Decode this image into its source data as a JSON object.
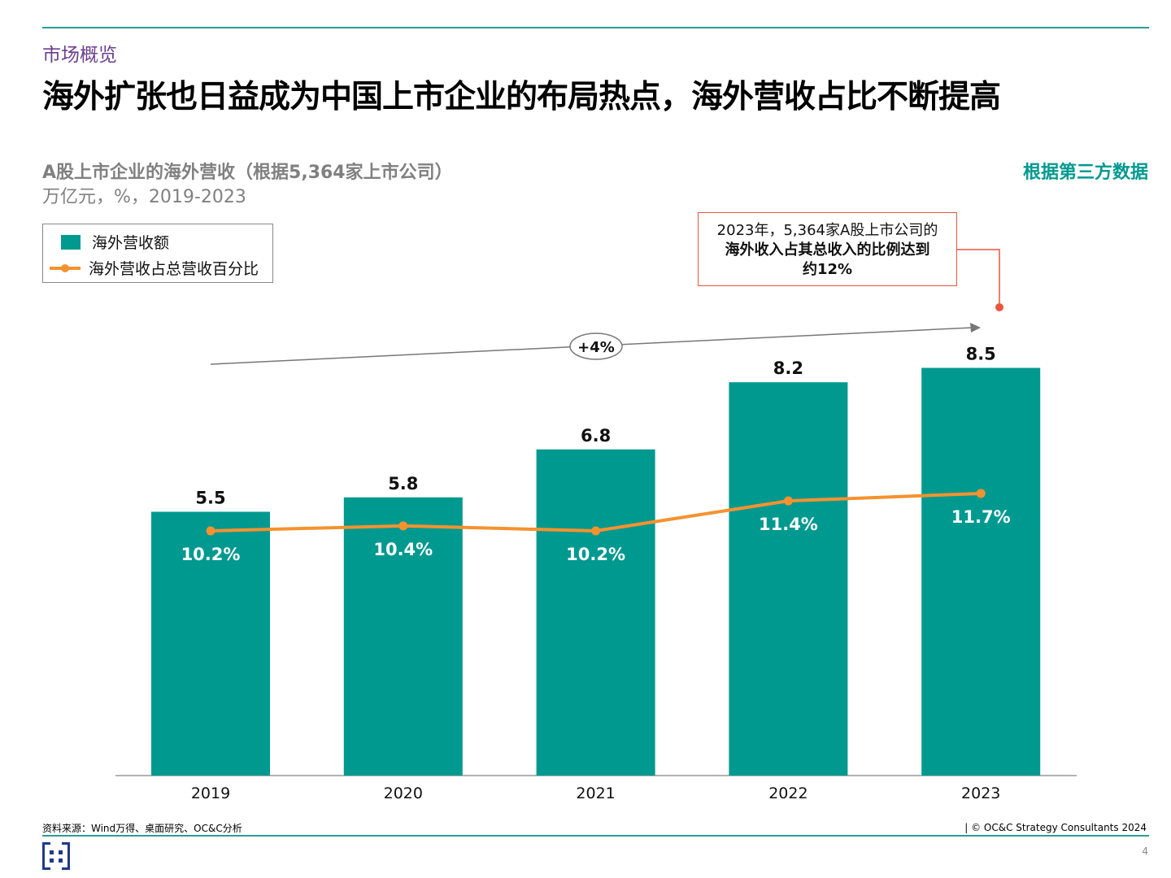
{
  "header": {
    "section": "市场概览",
    "title": "海外扩张也日益成为中国上市企业的布局热点，海外营收占比不断提高"
  },
  "chart_data": {
    "type": "bar",
    "title": "A股上市企业的海外营收（根据5,364家上市公司）",
    "subtitle": "万亿元，%，2019-2023",
    "source_tag": "根据第三方数据",
    "categories": [
      "2019",
      "2020",
      "2021",
      "2022",
      "2023"
    ],
    "series": [
      {
        "name": "海外营收额",
        "type": "bar",
        "values": [
          5.5,
          5.8,
          6.8,
          8.2,
          8.5
        ],
        "labels": [
          "5.5",
          "5.8",
          "6.8",
          "8.2",
          "8.5"
        ],
        "color": "#009990"
      },
      {
        "name": "海外营收占总营收百分比",
        "type": "line",
        "values": [
          10.2,
          10.4,
          10.2,
          11.4,
          11.7
        ],
        "labels": [
          "10.2%",
          "10.4%",
          "10.2%",
          "11.4%",
          "11.7%"
        ],
        "color": "#f5922f"
      }
    ],
    "legend_placement": "top-left",
    "cagr_annotation": "+4%",
    "callout": {
      "line1": "2023年，5,364家A股上市公司的",
      "line2": "海外收入占其总收入的比例达到",
      "line3": "约12%",
      "color": "#e8553f"
    },
    "grid": false
  },
  "footer": {
    "source": "资料来源：Wind万得、桌面研究、OC&C分析",
    "copyright": "| © OC&C Strategy Consultants 2024",
    "page": "4"
  }
}
